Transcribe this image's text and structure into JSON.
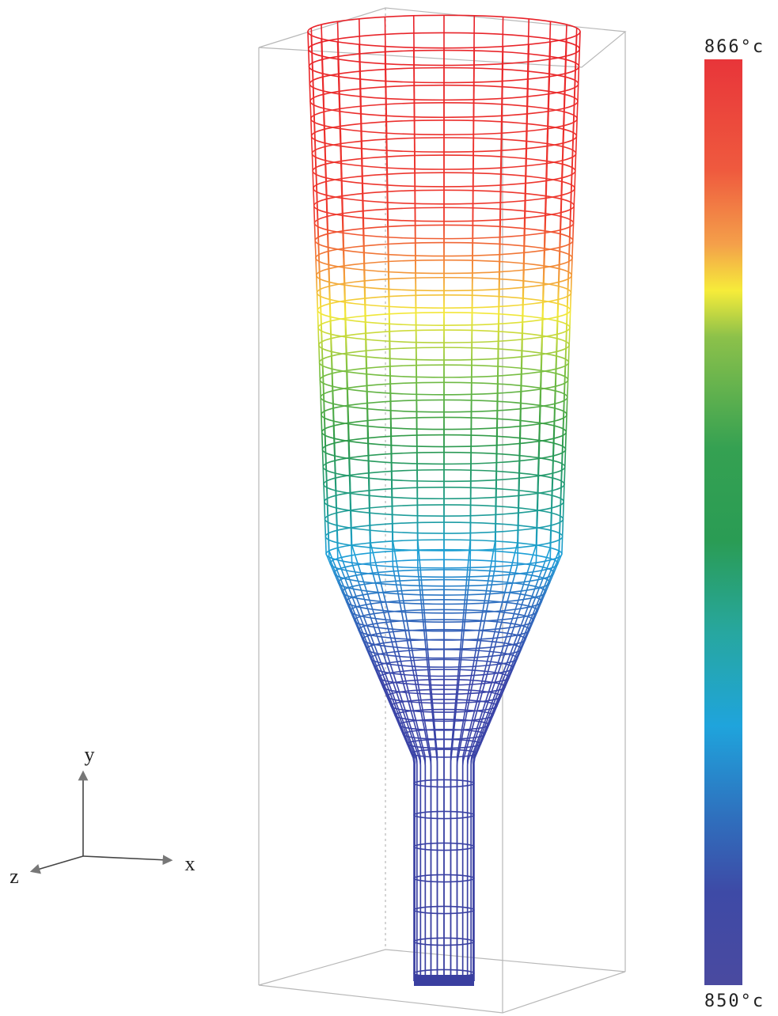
{
  "colorbar": {
    "max_label": "866°c",
    "min_label": "850°c"
  },
  "axes": {
    "x": "x",
    "y": "y",
    "z": "z"
  }
}
